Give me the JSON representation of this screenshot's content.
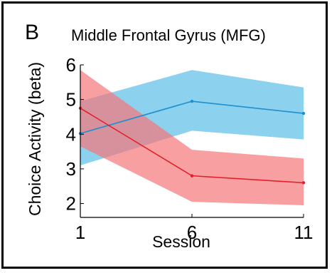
{
  "panel_label": "B",
  "colors": {
    "blue_line": "#1f8fcf",
    "blue_band": "#5bbde6",
    "red_line": "#e3202a",
    "red_band": "#f5767b",
    "axis": "#000000"
  },
  "chart_data": {
    "type": "line",
    "title": "Middle Frontal Gyrus (MFG)",
    "xlabel": "Session",
    "ylabel": "Choice Activity (beta)",
    "x": [
      1,
      6,
      11
    ],
    "xticks": [
      1,
      6,
      11
    ],
    "yticks": [
      2,
      3,
      4,
      5,
      6
    ],
    "xlim": [
      1,
      11
    ],
    "ylim": [
      1.6,
      6.0
    ],
    "grid": false,
    "series": [
      {
        "color": "#1f8fcf",
        "band_color": "#5bbde6",
        "values": [
          4.02,
          4.95,
          4.6
        ],
        "lower": [
          3.1,
          4.1,
          3.85
        ],
        "upper": [
          4.95,
          5.85,
          5.35
        ]
      },
      {
        "color": "#e3202a",
        "band_color": "#f5767b",
        "values": [
          4.75,
          2.8,
          2.6
        ],
        "lower": [
          3.65,
          2.05,
          1.95
        ],
        "upper": [
          5.85,
          3.55,
          3.3
        ]
      }
    ]
  }
}
